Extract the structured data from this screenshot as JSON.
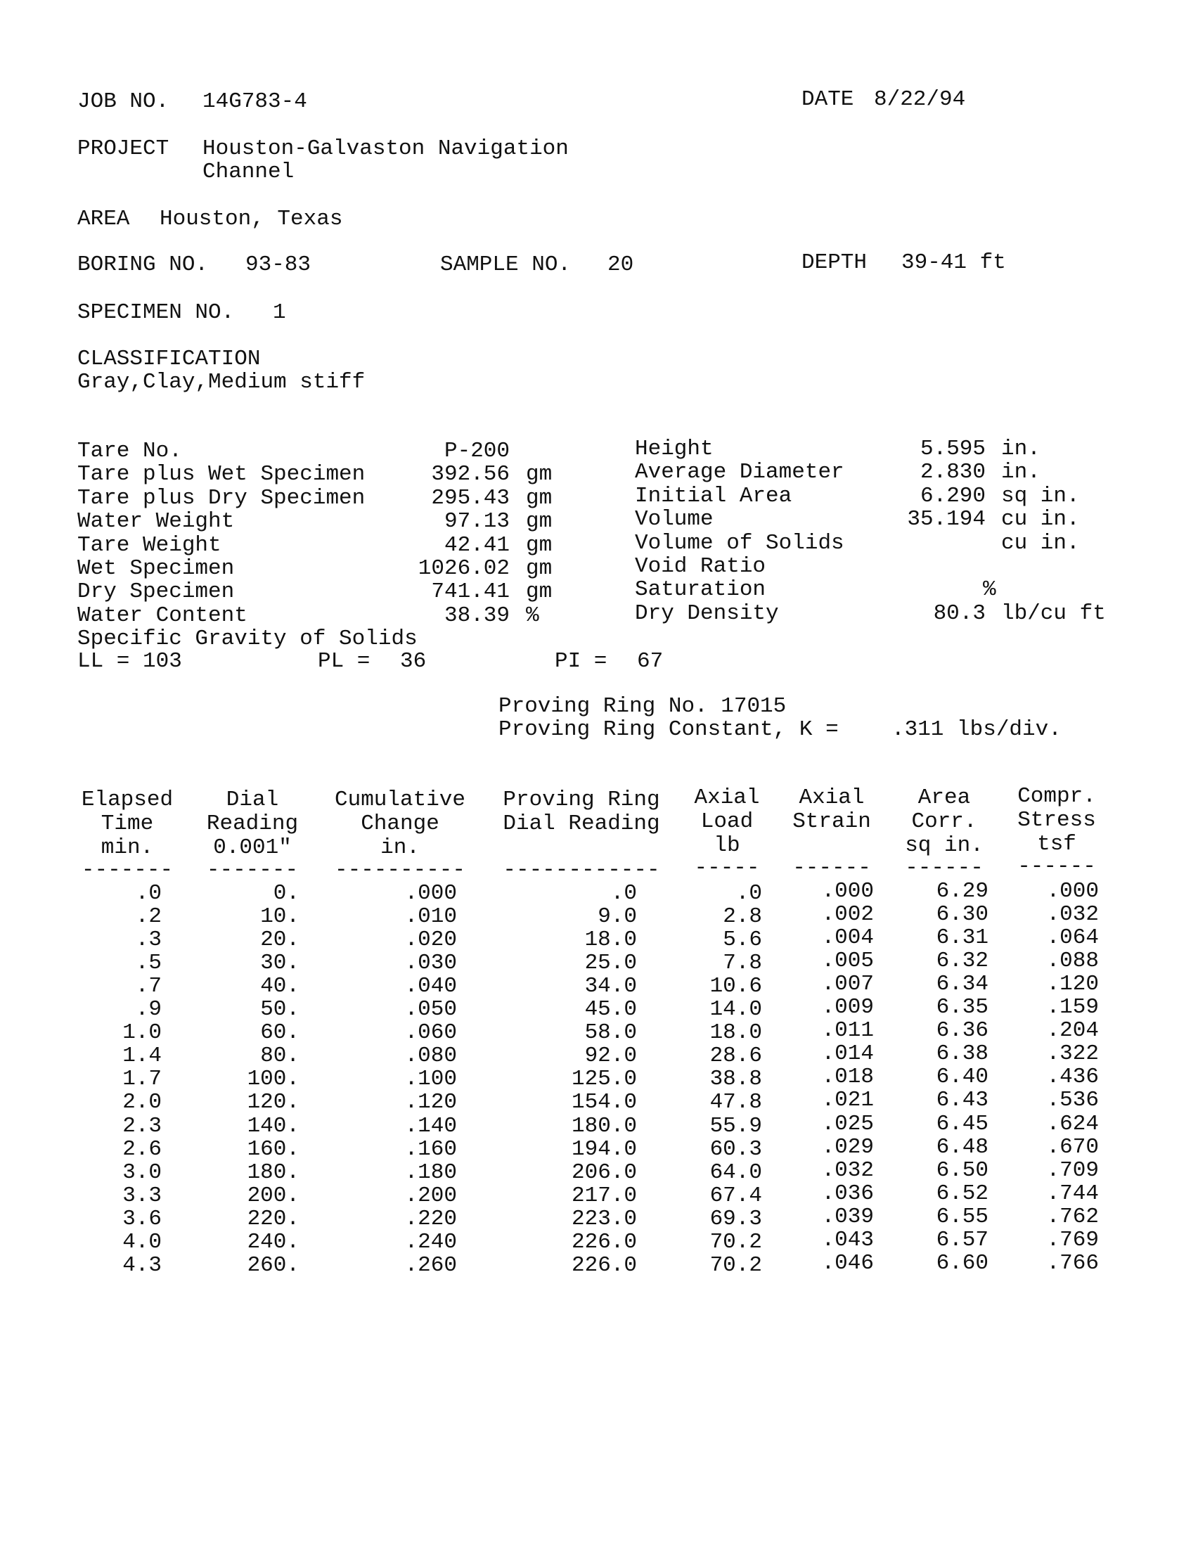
{
  "header": {
    "job_label": "JOB NO.",
    "job_no": "14G783-4",
    "date_label": "DATE",
    "date": "8/22/94",
    "project_label": "PROJECT",
    "project_line1": "Houston-Galvaston Navigation",
    "project_line2": "Channel",
    "area_label": "AREA",
    "area": "Houston, Texas",
    "boring_label": "BORING NO.",
    "boring_no": "93-83",
    "sample_label": "SAMPLE NO.",
    "sample_no": "20",
    "depth_label": "DEPTH",
    "depth": "39-41 ft",
    "specimen_label": "SPECIMEN NO.",
    "specimen_no": "1",
    "classification_label": "CLASSIFICATION",
    "classification": "Gray,Clay,Medium stiff"
  },
  "properties_left": [
    {
      "label": "Tare No.",
      "value": "P-200",
      "unit": ""
    },
    {
      "label": "Tare plus Wet Specimen",
      "value": "392.56",
      "unit": "gm"
    },
    {
      "label": "Tare plus Dry Specimen",
      "value": "295.43",
      "unit": "gm"
    },
    {
      "label": "Water Weight",
      "value": "97.13",
      "unit": "gm"
    },
    {
      "label": "Tare Weight",
      "value": "42.41",
      "unit": "gm"
    },
    {
      "label": "Wet Specimen",
      "value": "1026.02",
      "unit": "gm"
    },
    {
      "label": "Dry Specimen",
      "value": "741.41",
      "unit": "gm"
    },
    {
      "label": "Water Content",
      "value": "38.39",
      "unit": "%"
    },
    {
      "label": "Specific Gravity of Solids",
      "value": "",
      "unit": ""
    }
  ],
  "properties_right": [
    {
      "label": "Height",
      "value": "5.595",
      "unit": "in."
    },
    {
      "label": "Average Diameter",
      "value": "2.830",
      "unit": "in."
    },
    {
      "label": "Initial Area",
      "value": "6.290",
      "unit": "sq in."
    },
    {
      "label": "Volume",
      "value": "35.194",
      "unit": "cu in."
    },
    {
      "label": "Volume of Solids",
      "value": "",
      "unit": "cu in."
    },
    {
      "label": "Void Ratio",
      "value": "",
      "unit": ""
    },
    {
      "label": "Saturation",
      "value": "",
      "unit": "%"
    },
    {
      "label": "Dry Density",
      "value": "80.3",
      "unit": "lb/cu ft"
    }
  ],
  "limits": {
    "ll_label": "LL = 103",
    "pl_label": "PL =",
    "pl": "36",
    "pi_label": "PI =",
    "pi": "67"
  },
  "proving_ring": {
    "no_line": "Proving Ring No. 17015",
    "constant_label": "Proving Ring Constant, K =",
    "constant": ".311 lbs/div."
  },
  "table": {
    "headers": [
      [
        "Elapsed",
        "Time",
        "min."
      ],
      [
        "Dial",
        "Reading",
        "0.001\""
      ],
      [
        "Cumulative",
        "Change",
        "in."
      ],
      [
        "Proving Ring",
        "Dial Reading",
        ""
      ],
      [
        "Axial",
        "Load",
        "lb"
      ],
      [
        "Axial",
        "Strain",
        ""
      ],
      [
        "Area",
        "Corr.",
        "sq in."
      ],
      [
        "Compr.",
        "Stress",
        "tsf"
      ]
    ],
    "dashes": [
      "-------",
      "-------",
      "----------",
      "------------",
      "-----",
      "------",
      "------",
      "------"
    ],
    "rows": [
      [
        ".0",
        "0.",
        ".000",
        ".0",
        ".0",
        ".000",
        "6.29",
        ".000"
      ],
      [
        ".2",
        "10.",
        ".010",
        "9.0",
        "2.8",
        ".002",
        "6.30",
        ".032"
      ],
      [
        ".3",
        "20.",
        ".020",
        "18.0",
        "5.6",
        ".004",
        "6.31",
        ".064"
      ],
      [
        ".5",
        "30.",
        ".030",
        "25.0",
        "7.8",
        ".005",
        "6.32",
        ".088"
      ],
      [
        ".7",
        "40.",
        ".040",
        "34.0",
        "10.6",
        ".007",
        "6.34",
        ".120"
      ],
      [
        ".9",
        "50.",
        ".050",
        "45.0",
        "14.0",
        ".009",
        "6.35",
        ".159"
      ],
      [
        "1.0",
        "60.",
        ".060",
        "58.0",
        "18.0",
        ".011",
        "6.36",
        ".204"
      ],
      [
        "1.4",
        "80.",
        ".080",
        "92.0",
        "28.6",
        ".014",
        "6.38",
        ".322"
      ],
      [
        "1.7",
        "100.",
        ".100",
        "125.0",
        "38.8",
        ".018",
        "6.40",
        ".436"
      ],
      [
        "2.0",
        "120.",
        ".120",
        "154.0",
        "47.8",
        ".021",
        "6.43",
        ".536"
      ],
      [
        "2.3",
        "140.",
        ".140",
        "180.0",
        "55.9",
        ".025",
        "6.45",
        ".624"
      ],
      [
        "2.6",
        "160.",
        ".160",
        "194.0",
        "60.3",
        ".029",
        "6.48",
        ".670"
      ],
      [
        "3.0",
        "180.",
        ".180",
        "206.0",
        "64.0",
        ".032",
        "6.50",
        ".709"
      ],
      [
        "3.3",
        "200.",
        ".200",
        "217.0",
        "67.4",
        ".036",
        "6.52",
        ".744"
      ],
      [
        "3.6",
        "220.",
        ".220",
        "223.0",
        "69.3",
        ".039",
        "6.55",
        ".762"
      ],
      [
        "4.0",
        "240.",
        ".240",
        "226.0",
        "70.2",
        ".043",
        "6.57",
        ".769"
      ],
      [
        "4.3",
        "260.",
        ".260",
        "226.0",
        "70.2",
        ".046",
        "6.60",
        ".766"
      ]
    ]
  }
}
